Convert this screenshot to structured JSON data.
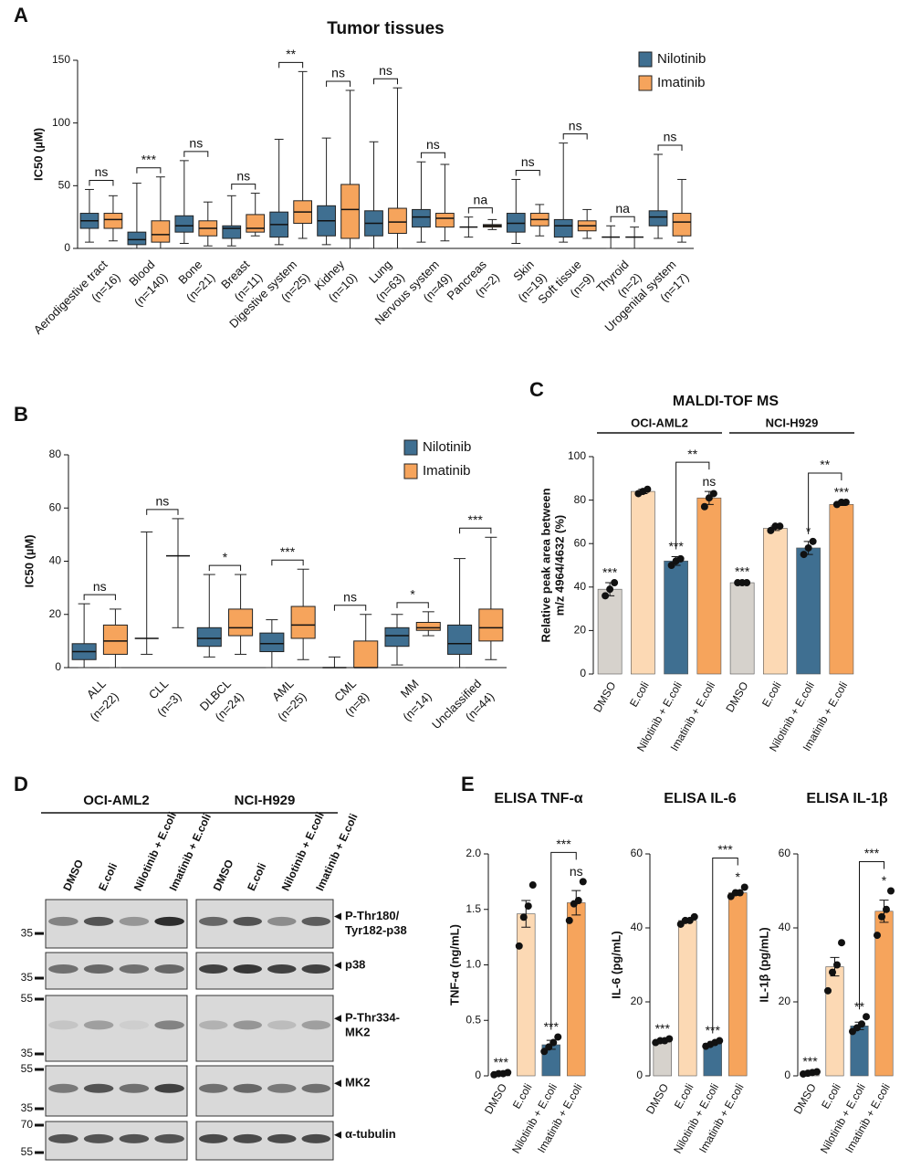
{
  "chart_data": [
    {
      "type": "box",
      "panel": "A",
      "title": "Tumor tissues",
      "ylabel": "IC50 (µM)",
      "categories": [
        "Aerodigestive tract",
        "Blood",
        "Bone",
        "Breast",
        "Digestive system",
        "Kidney",
        "Lung",
        "Nervous system",
        "Pancreas",
        "Skin",
        "Soft tissue",
        "Thyroid",
        "Urogenital system"
      ],
      "n_labels": [
        "(n=16)",
        "(n=140)",
        "(n=21)",
        "(n=11)",
        "(n=25)",
        "(n=10)",
        "(n=63)",
        "(n=49)",
        "(n=2)",
        "(n=19)",
        "(n=9)",
        "(n=2)",
        "(n=17)"
      ],
      "series": [
        {
          "name": "Nilotinib",
          "color": "#3f6f91",
          "values": [
            [
              5,
              16,
              22,
              28,
              47
            ],
            [
              0,
              3,
              7,
              13,
              52
            ],
            [
              4,
              13,
              18,
              26,
              70
            ],
            [
              2,
              8,
              16,
              18,
              42
            ],
            [
              3,
              9,
              19,
              29,
              87
            ],
            [
              3,
              10,
              22,
              34,
              88
            ],
            [
              0,
              10,
              20,
              30,
              85
            ],
            [
              5,
              17,
              25,
              31,
              69
            ],
            [
              9,
              17,
              17,
              17,
              25
            ],
            [
              4,
              13,
              20,
              28,
              55
            ],
            [
              5,
              9,
              18,
              23,
              84
            ],
            [
              0,
              9,
              9,
              9,
              18
            ],
            [
              8,
              18,
              25,
              30,
              75
            ]
          ]
        },
        {
          "name": "Imatinib",
          "color": "#f6a45c",
          "values": [
            [
              6,
              16,
              23,
              28,
              42
            ],
            [
              0,
              5,
              11,
              22,
              57
            ],
            [
              2,
              10,
              16,
              22,
              37
            ],
            [
              10,
              13,
              16,
              27,
              44
            ],
            [
              8,
              20,
              29,
              38,
              141
            ],
            [
              0,
              8,
              31,
              51,
              126
            ],
            [
              0,
              12,
              21,
              32,
              128
            ],
            [
              6,
              17,
              24,
              28,
              67
            ],
            [
              15,
              17,
              18,
              19,
              23
            ],
            [
              10,
              18,
              23,
              28,
              35
            ],
            [
              8,
              14,
              18,
              22,
              31
            ],
            [
              0,
              9,
              9,
              9,
              17
            ],
            [
              5,
              10,
              21,
              28,
              55
            ]
          ]
        }
      ],
      "significance": [
        "ns",
        "***",
        "ns",
        "ns",
        "**",
        "ns",
        "ns",
        "ns",
        "na",
        "ns",
        "ns",
        "na",
        "ns"
      ],
      "ylim": [
        0,
        150
      ],
      "yticks": [
        0,
        50,
        100,
        150
      ],
      "legend": "upper right"
    },
    {
      "type": "box",
      "panel": "B",
      "ylabel": "IC50 (µM)",
      "categories": [
        "ALL",
        "CLL",
        "DLBCL",
        "AML",
        "CML",
        "MM",
        "Unclassified"
      ],
      "n_labels": [
        "(n=22)",
        "(n=3)",
        "(n=24)",
        "(n=25)",
        "(n=8)",
        "(n=14)",
        "(n=44)"
      ],
      "series": [
        {
          "name": "Nilotinib",
          "color": "#3f6f91",
          "values": [
            [
              0,
              3,
              6,
              9,
              24
            ],
            [
              5,
              11,
              11,
              11,
              51
            ],
            [
              4,
              8,
              11,
              15,
              35
            ],
            [
              0,
              6,
              9,
              13,
              18
            ],
            [
              0,
              0,
              0,
              0,
              4
            ],
            [
              1,
              8,
              12,
              15,
              20
            ],
            [
              0,
              5,
              9,
              16,
              41
            ]
          ]
        },
        {
          "name": "Imatinib",
          "color": "#f6a45c",
          "values": [
            [
              0,
              5,
              10,
              16,
              22
            ],
            [
              15,
              42,
              42,
              42,
              56
            ],
            [
              5,
              12,
              15,
              22,
              35
            ],
            [
              3,
              11,
              16,
              23,
              37
            ],
            [
              0,
              0,
              0,
              10,
              20
            ],
            [
              12,
              14,
              15,
              17,
              21
            ],
            [
              3,
              10,
              15,
              22,
              49
            ]
          ]
        }
      ],
      "significance": [
        "ns",
        "ns",
        "*",
        "***",
        "ns",
        "*",
        "***"
      ],
      "ylim": [
        0,
        80
      ],
      "yticks": [
        0,
        20,
        40,
        60,
        80
      ],
      "legend": "upper right"
    },
    {
      "type": "bar",
      "panel": "C",
      "title": "MALDI-TOF MS",
      "ylabel": [
        "Relative peak area between",
        "m/z 4964/4632 (%)"
      ],
      "colors": [
        "#d6d2cc",
        "#fcd9b4",
        "#3f6f91",
        "#f6a45c"
      ],
      "groups": [
        {
          "name": "OCI-AML2",
          "categories": [
            "DMSO",
            "E.coli",
            "Nilotinib + E.coli",
            "Imatinib + E.coli"
          ],
          "values": [
            39,
            84,
            52,
            81
          ],
          "errors": [
            3,
            1,
            2,
            3
          ],
          "points": [
            [
              36,
              39,
              42
            ],
            [
              83,
              84,
              85
            ],
            [
              50,
              52,
              53
            ],
            [
              77,
              81,
              83
            ]
          ],
          "stars": [
            "***",
            null,
            "***",
            "ns"
          ],
          "bracket": "**"
        },
        {
          "name": "NCI-H929",
          "categories": [
            "DMSO",
            "E.coli",
            "Nilotinib + E.coli",
            "Imatinib + E.coli"
          ],
          "values": [
            42,
            67,
            58,
            78
          ],
          "errors": [
            0.5,
            1,
            3,
            0.5
          ],
          "points": [
            [
              42,
              42,
              42
            ],
            [
              66,
              68,
              68
            ],
            [
              55,
              58,
              61
            ],
            [
              78,
              79,
              79
            ]
          ],
          "stars": [
            "***",
            null,
            "*",
            "***"
          ],
          "bracket": "**"
        }
      ],
      "ylim": [
        0,
        100
      ],
      "yticks": [
        0,
        20,
        40,
        60,
        80,
        100
      ]
    },
    {
      "type": "bar",
      "panel": "E",
      "title": "ELISA TNF-α",
      "ylabel": "TNF-α (ng/mL)",
      "colors": [
        "#d6d2cc",
        "#fcd9b4",
        "#3f6f91",
        "#f6a45c"
      ],
      "groups": [
        {
          "categories": [
            "DMSO",
            "E.coli",
            "Nilotinib + E.coli",
            "Imatinib + E.coli"
          ],
          "values": [
            0.02,
            1.46,
            0.28,
            1.56
          ],
          "errors": [
            0.01,
            0.12,
            0.04,
            0.11
          ],
          "points": [
            [
              0.01,
              0.02,
              0.02,
              0.03
            ],
            [
              1.17,
              1.43,
              1.53,
              1.72
            ],
            [
              0.22,
              0.26,
              0.3,
              0.35
            ],
            [
              1.4,
              1.55,
              1.58,
              1.75
            ]
          ],
          "stars": [
            "***",
            null,
            "***",
            "ns"
          ],
          "bracket": "***"
        }
      ],
      "ylim": [
        0,
        2
      ],
      "yticks": [
        0,
        0.5,
        {
          "value": 1,
          "label": "1.0"
        },
        1.5,
        {
          "value": 2,
          "label": "2.0"
        }
      ]
    },
    {
      "type": "bar",
      "title": "ELISA IL-6",
      "ylabel": "IL-6 (pg/mL)",
      "colors": [
        "#d6d2cc",
        "#fcd9b4",
        "#3f6f91",
        "#f6a45c"
      ],
      "groups": [
        {
          "categories": [
            "DMSO",
            "E.coli",
            "Nilotinib + E.coli",
            "Imatinib + E.coli"
          ],
          "values": [
            9.5,
            42,
            8.8,
            49.5
          ],
          "errors": [
            0.3,
            0.6,
            0.5,
            0.7
          ],
          "points": [
            [
              9,
              9.5,
              9.5,
              10
            ],
            [
              41,
              42,
              42,
              43
            ],
            [
              8,
              8.5,
              9,
              9.5
            ],
            [
              48.5,
              49.5,
              49.5,
              51
            ]
          ],
          "stars": [
            "***",
            null,
            "***",
            "*"
          ],
          "bracket": "***"
        }
      ],
      "ylim": [
        0,
        60
      ],
      "yticks": [
        0,
        20,
        40,
        60
      ]
    },
    {
      "type": "bar",
      "title": "ELISA IL-1β",
      "ylabel": "IL-1β (pg/mL)",
      "colors": [
        "#d6d2cc",
        "#fcd9b4",
        "#3f6f91",
        "#f6a45c"
      ],
      "groups": [
        {
          "categories": [
            "DMSO",
            "E.coli",
            "Nilotinib + E.coli",
            "Imatinib + E.coli"
          ],
          "values": [
            0.8,
            29.5,
            13.5,
            44.5
          ],
          "errors": [
            0.2,
            2.5,
            1,
            3
          ],
          "points": [
            [
              0.5,
              0.7,
              0.9,
              1.1
            ],
            [
              23,
              28,
              30,
              36
            ],
            [
              12,
              13,
              14,
              16
            ],
            [
              38,
              43,
              45,
              50
            ]
          ],
          "stars": [
            "***",
            null,
            "**",
            "*"
          ],
          "bracket": "***"
        }
      ],
      "ylim": [
        0,
        60
      ],
      "yticks": [
        0,
        20,
        40,
        60
      ]
    }
  ],
  "blot": {
    "panel": "D",
    "cell_lines": [
      "OCI-AML2",
      "NCI-H929"
    ],
    "lanes": [
      "DMSO",
      "E.coli",
      "Nilotinib + E.coli",
      "Imatinib + E.coli"
    ],
    "rows": [
      {
        "label": [
          "P-Thr180/",
          "Tyr182-p38"
        ],
        "markers": [
          35
        ]
      },
      {
        "label": [
          "p38"
        ],
        "markers": [
          35
        ]
      },
      {
        "label": [
          "P-Thr334-",
          "MK2"
        ],
        "markers": [
          55,
          35
        ]
      },
      {
        "label": [
          "MK2"
        ],
        "markers": [
          55,
          35
        ]
      },
      {
        "label": [
          "α-tubulin"
        ],
        "markers": [
          70,
          55
        ]
      }
    ]
  }
}
